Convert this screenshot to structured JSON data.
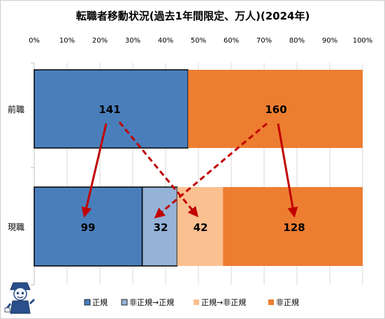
{
  "chart_data": {
    "type": "bar",
    "orientation": "horizontal",
    "stacked": "percent",
    "title": "転職者移動状況(過去1年間限定、万人)(2024年)",
    "categories": [
      "前職",
      "現職"
    ],
    "xlim": [
      0,
      100
    ],
    "x_ticks": [
      "0%",
      "10%",
      "20%",
      "30%",
      "40%",
      "50%",
      "60%",
      "70%",
      "80%",
      "90%",
      "100%"
    ],
    "grid": true,
    "legend_position": "bottom",
    "series": [
      {
        "name": "正規",
        "color": "#4a7ebb",
        "values": [
          141,
          99
        ]
      },
      {
        "name": "非正規→正規",
        "color": "#95b3d7",
        "values": [
          0,
          32
        ]
      },
      {
        "name": "正規→非正規",
        "color": "#fac090",
        "values": [
          0,
          42
        ]
      },
      {
        "name": "非正規",
        "color": "#ed7d31",
        "values": [
          160,
          128
        ]
      }
    ],
    "data_labels": {
      "前職": [
        "141",
        "160"
      ],
      "現職": [
        "99",
        "32",
        "42",
        "128"
      ]
    },
    "annotations": [
      {
        "from": "前職 正規",
        "to": "現職 正規",
        "style": "solid"
      },
      {
        "from": "前職 正規",
        "to": "現職 正規→非正規",
        "style": "dashed"
      },
      {
        "from": "前職 非正規",
        "to": "現職 非正規→正規",
        "style": "dashed"
      },
      {
        "from": "前職 非正規",
        "to": "現職 非正規",
        "style": "solid"
      }
    ],
    "colors": {
      "arrow": "#c00000",
      "grid": "#d9d9d9",
      "outline": "#000000"
    }
  }
}
